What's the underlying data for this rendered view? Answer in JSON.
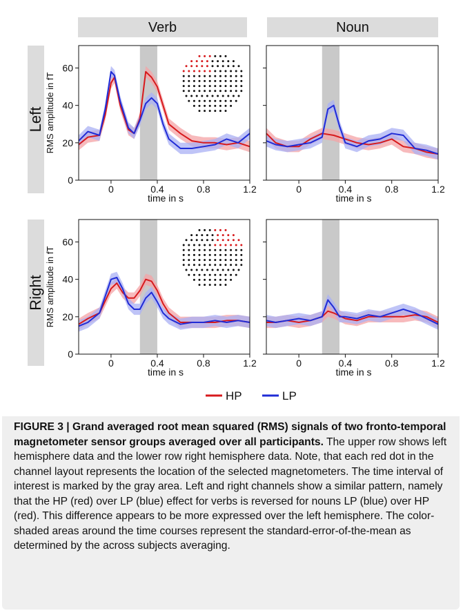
{
  "colors": {
    "hp": "#d7191c",
    "lp": "#1f2bd6",
    "hp_band": "#f4a3a5",
    "lp_band": "#a9b0f4",
    "shade": "#c9c9c9",
    "header": "#dcdcdc"
  },
  "column_headers": [
    "Verb",
    "Noun"
  ],
  "row_headers": [
    "Left",
    "Right"
  ],
  "legend": [
    {
      "label": "HP",
      "color": "#d7191c"
    },
    {
      "label": "LP",
      "color": "#1f2bd6"
    }
  ],
  "caption": {
    "title": "FIGURE 3 | Grand averaged root mean squared (RMS) signals of two fronto-temporal magnetometer sensor groups averaged over all participants.",
    "body": " The upper row shows left hemisphere data and the lower row right hemisphere data. Note, that each red dot in the channel layout represents the location of the selected magnetometers. The time interval of interest is marked by the gray area. Left and right channels show a similar pattern, namely that the HP (red) over LP (blue) effect for verbs is reversed for nouns LP (blue) over HP (red). This difference appears to be more expressed over the left hemisphere. The color-shaded areas around the time courses represent the standard-error-of-the-mean as determined by the across subjects averaging."
  },
  "chart_data": [
    {
      "type": "line",
      "column": "Verb",
      "row": "Left",
      "xlabel": "time in s",
      "ylabel": "RMS amplitude in fT",
      "xlim": [
        -0.28,
        1.2
      ],
      "ylim": [
        0,
        72
      ],
      "xticks": [
        0,
        0.4,
        0.8,
        1.2
      ],
      "xtick_labels": [
        "0",
        "0.4",
        "0.8",
        "1.2"
      ],
      "yticks": [
        0,
        20,
        40,
        60
      ],
      "ytick_labels": [
        "0",
        "20",
        "40",
        "60"
      ],
      "interval_of_interest": [
        0.25,
        0.4
      ],
      "sensor_inset": "left",
      "series": [
        {
          "name": "HP",
          "color": "#d7191c",
          "sem": 3,
          "x": [
            -0.28,
            -0.2,
            -0.1,
            -0.05,
            0,
            0.03,
            0.08,
            0.15,
            0.2,
            0.25,
            0.3,
            0.35,
            0.4,
            0.45,
            0.5,
            0.6,
            0.7,
            0.8,
            0.9,
            1.0,
            1.1,
            1.2
          ],
          "y": [
            19,
            23,
            24,
            35,
            52,
            55,
            40,
            27,
            25,
            33,
            58,
            55,
            50,
            40,
            30,
            25,
            21,
            20,
            20,
            19,
            20,
            18
          ]
        },
        {
          "name": "LP",
          "color": "#1f2bd6",
          "sem": 3,
          "x": [
            -0.28,
            -0.2,
            -0.1,
            -0.05,
            0,
            0.03,
            0.08,
            0.15,
            0.2,
            0.25,
            0.3,
            0.35,
            0.4,
            0.45,
            0.5,
            0.6,
            0.7,
            0.8,
            0.9,
            1.0,
            1.1,
            1.2
          ],
          "y": [
            21,
            26,
            24,
            38,
            58,
            56,
            42,
            28,
            25,
            32,
            41,
            44,
            41,
            30,
            22,
            17,
            17,
            18,
            19,
            22,
            20,
            25
          ]
        }
      ]
    },
    {
      "type": "line",
      "column": "Noun",
      "row": "Left",
      "xlabel": "time in s",
      "ylabel": "",
      "xlim": [
        -0.28,
        1.2
      ],
      "ylim": [
        0,
        72
      ],
      "xticks": [
        0,
        0.4,
        0.8,
        1.2
      ],
      "xtick_labels": [
        "0",
        "0.4",
        "0.8",
        "1.2"
      ],
      "yticks": [
        0,
        20,
        40,
        60
      ],
      "ytick_labels": [],
      "interval_of_interest": [
        0.2,
        0.35
      ],
      "sensor_inset": "",
      "series": [
        {
          "name": "HP",
          "color": "#d7191c",
          "sem": 3,
          "x": [
            -0.28,
            -0.2,
            -0.1,
            0,
            0.1,
            0.2,
            0.3,
            0.4,
            0.5,
            0.6,
            0.7,
            0.8,
            0.9,
            1.0,
            1.1,
            1.2
          ],
          "y": [
            25,
            20,
            18,
            18,
            22,
            25,
            24,
            22,
            20,
            19,
            20,
            22,
            18,
            17,
            15,
            14
          ]
        },
        {
          "name": "LP",
          "color": "#1f2bd6",
          "sem": 3,
          "x": [
            -0.28,
            -0.2,
            -0.1,
            0,
            0.1,
            0.2,
            0.25,
            0.3,
            0.35,
            0.4,
            0.5,
            0.6,
            0.7,
            0.8,
            0.9,
            1.0,
            1.1,
            1.2
          ],
          "y": [
            21,
            19,
            18,
            19,
            20,
            23,
            38,
            40,
            29,
            20,
            18,
            21,
            22,
            25,
            24,
            17,
            16,
            14
          ]
        }
      ]
    },
    {
      "type": "line",
      "column": "Verb",
      "row": "Right",
      "xlabel": "time in s",
      "ylabel": "RMS amplitude in fT",
      "xlim": [
        -0.28,
        1.2
      ],
      "ylim": [
        0,
        72
      ],
      "xticks": [
        0,
        0.4,
        0.8,
        1.2
      ],
      "xtick_labels": [
        "0",
        "0.4",
        "0.8",
        "1.2"
      ],
      "yticks": [
        0,
        20,
        40,
        60
      ],
      "ytick_labels": [
        "0",
        "20",
        "40",
        "60"
      ],
      "interval_of_interest": [
        0.25,
        0.4
      ],
      "sensor_inset": "right",
      "series": [
        {
          "name": "HP",
          "color": "#d7191c",
          "sem": 3,
          "x": [
            -0.28,
            -0.2,
            -0.1,
            0,
            0.05,
            0.1,
            0.15,
            0.2,
            0.25,
            0.3,
            0.35,
            0.4,
            0.45,
            0.5,
            0.6,
            0.7,
            0.8,
            0.9,
            1.0,
            1.1,
            1.2
          ],
          "y": [
            16,
            19,
            22,
            35,
            38,
            33,
            30,
            30,
            34,
            40,
            39,
            34,
            27,
            22,
            17,
            17,
            17,
            17,
            18,
            18,
            17
          ]
        },
        {
          "name": "LP",
          "color": "#1f2bd6",
          "sem": 3,
          "x": [
            -0.28,
            -0.2,
            -0.1,
            0,
            0.05,
            0.1,
            0.15,
            0.2,
            0.25,
            0.3,
            0.35,
            0.4,
            0.45,
            0.5,
            0.6,
            0.7,
            0.8,
            0.9,
            1.0,
            1.1,
            1.2
          ],
          "y": [
            15,
            17,
            22,
            40,
            41,
            35,
            27,
            24,
            24,
            30,
            33,
            28,
            22,
            19,
            16,
            17,
            17,
            18,
            17,
            18,
            17
          ]
        }
      ]
    },
    {
      "type": "line",
      "column": "Noun",
      "row": "Right",
      "xlabel": "time in s",
      "ylabel": "",
      "xlim": [
        -0.28,
        1.2
      ],
      "ylim": [
        0,
        72
      ],
      "xticks": [
        0,
        0.4,
        0.8,
        1.2
      ],
      "xtick_labels": [
        "0",
        "0.4",
        "0.8",
        "1.2"
      ],
      "yticks": [
        0,
        20,
        40,
        60
      ],
      "ytick_labels": [],
      "interval_of_interest": [
        0.2,
        0.35
      ],
      "sensor_inset": "",
      "series": [
        {
          "name": "HP",
          "color": "#d7191c",
          "sem": 3,
          "x": [
            -0.28,
            -0.2,
            -0.1,
            0,
            0.1,
            0.2,
            0.25,
            0.3,
            0.4,
            0.5,
            0.6,
            0.7,
            0.8,
            0.9,
            1.0,
            1.1,
            1.2
          ],
          "y": [
            17,
            17,
            18,
            17,
            18,
            20,
            23,
            22,
            19,
            18,
            20,
            20,
            20,
            20,
            21,
            20,
            17
          ]
        },
        {
          "name": "LP",
          "color": "#1f2bd6",
          "sem": 3,
          "x": [
            -0.28,
            -0.2,
            -0.1,
            0,
            0.1,
            0.2,
            0.25,
            0.3,
            0.35,
            0.4,
            0.5,
            0.6,
            0.7,
            0.8,
            0.9,
            1.0,
            1.1,
            1.2
          ],
          "y": [
            18,
            17,
            18,
            19,
            18,
            20,
            29,
            25,
            20,
            20,
            19,
            21,
            20,
            22,
            24,
            22,
            19,
            16
          ]
        }
      ]
    }
  ]
}
